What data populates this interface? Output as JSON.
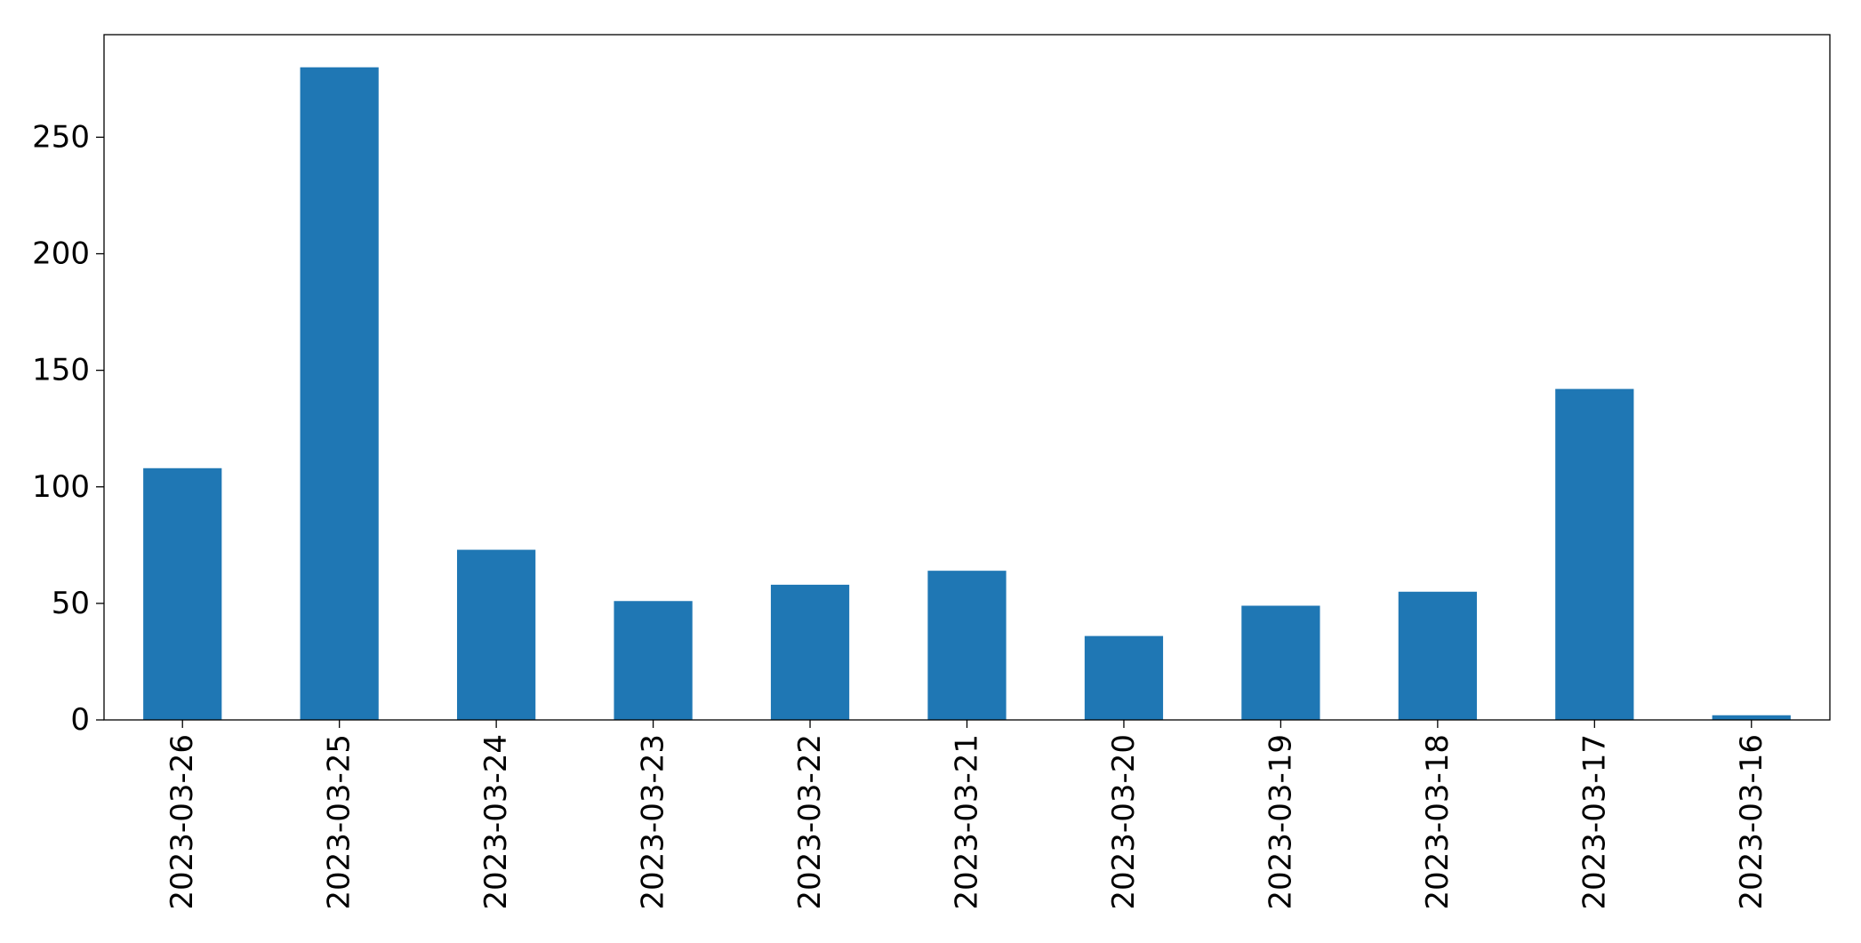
{
  "chart_data": {
    "type": "bar",
    "categories": [
      "2023-03-26",
      "2023-03-25",
      "2023-03-24",
      "2023-03-23",
      "2023-03-22",
      "2023-03-21",
      "2023-03-20",
      "2023-03-19",
      "2023-03-18",
      "2023-03-17",
      "2023-03-16"
    ],
    "values": [
      108,
      280,
      73,
      51,
      58,
      64,
      36,
      49,
      55,
      142,
      2
    ],
    "title": "",
    "xlabel": "",
    "ylabel": "",
    "ylim": [
      0,
      294
    ],
    "yticks": [
      0,
      50,
      100,
      150,
      200,
      250
    ],
    "grid": false,
    "bar_color": "#1f77b4",
    "x_tick_rotation": "vertical"
  }
}
